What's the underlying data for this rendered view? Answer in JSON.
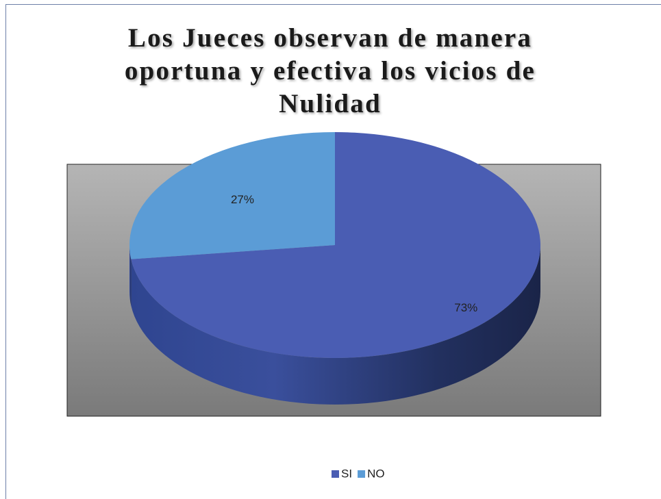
{
  "chart_data": {
    "type": "pie",
    "title": "Los Jueces observan de manera oportuna y efectiva los vicios de Nulidad",
    "categories": [
      "SI",
      "NO"
    ],
    "values": [
      73,
      27
    ],
    "value_labels": [
      "73%",
      "27%"
    ],
    "colors": [
      "#4a5db3",
      "#5b9cd6"
    ],
    "legend": "bottom"
  }
}
